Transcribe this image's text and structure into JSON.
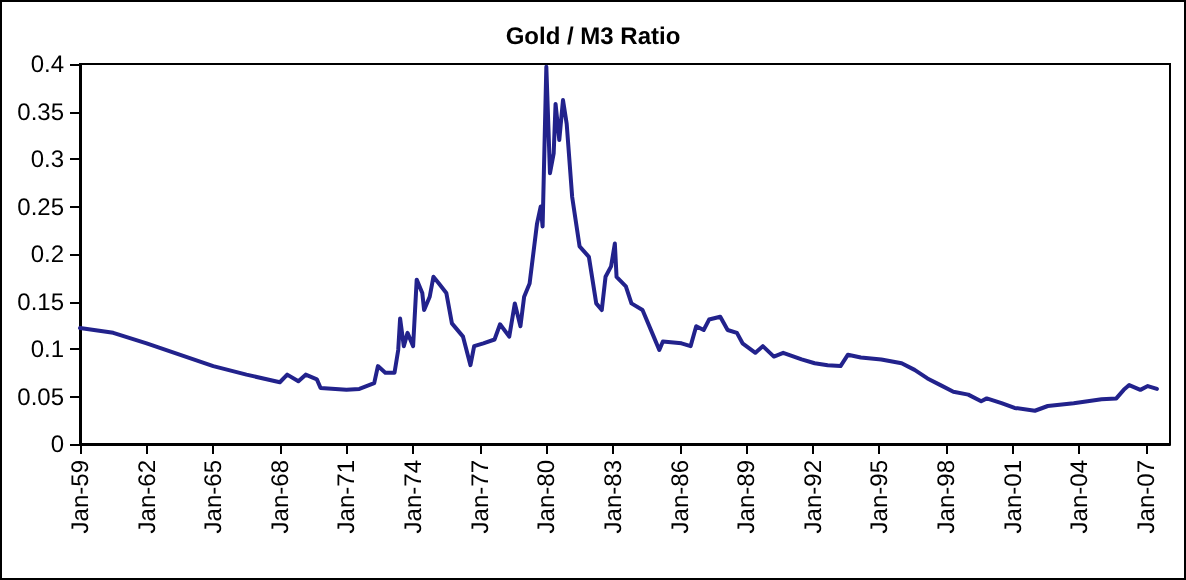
{
  "chart_data": {
    "type": "line",
    "title": "Gold / M3 Ratio",
    "x": [
      "1959-01",
      "1960-07",
      "1962-01",
      "1965-01",
      "1966-07",
      "1968-01",
      "1968-05",
      "1968-11",
      "1969-03",
      "1969-09",
      "1969-11",
      "1971-01",
      "1971-08",
      "1972-04",
      "1972-06",
      "1972-10",
      "1973-03",
      "1973-05",
      "1973-06",
      "1973-08",
      "1973-10",
      "1974-01",
      "1974-03",
      "1974-06",
      "1974-07",
      "1974-10",
      "1974-12",
      "1975-03",
      "1975-07",
      "1975-10",
      "1976-04",
      "1976-08",
      "1976-10",
      "1977-03",
      "1977-09",
      "1977-12",
      "1978-05",
      "1978-08",
      "1978-11",
      "1979-01",
      "1979-04",
      "1979-08",
      "1979-10",
      "1979-11",
      "1980-01",
      "1980-03",
      "1980-05",
      "1980-06",
      "1980-08",
      "1980-10",
      "1980-12",
      "1981-03",
      "1981-07",
      "1981-12",
      "1982-04",
      "1982-07",
      "1982-09",
      "1982-12",
      "1983-02",
      "1983-03",
      "1983-08",
      "1983-11",
      "1984-05",
      "1984-11",
      "1985-02",
      "1985-04",
      "1986-02",
      "1986-07",
      "1986-10",
      "1987-02",
      "1987-05",
      "1987-11",
      "1988-03",
      "1988-08",
      "1988-11",
      "1989-06",
      "1989-10",
      "1990-04",
      "1990-09",
      "1991-07",
      "1992-02",
      "1992-09",
      "1993-04",
      "1993-08",
      "1994-03",
      "1995-02",
      "1996-01",
      "1996-08",
      "1997-03",
      "1997-10",
      "1998-05",
      "1999-01",
      "1999-08",
      "1999-11",
      "2000-07",
      "2001-02",
      "2002-01",
      "2002-08",
      "2003-10",
      "2005-01",
      "2005-09",
      "2006-01",
      "2006-04",
      "2006-10",
      "2007-02",
      "2007-07"
    ],
    "series": [
      {
        "color": "#22228c",
        "values": [
          0.122,
          0.117,
          0.106,
          0.082,
          0.073,
          0.065,
          0.073,
          0.066,
          0.073,
          0.068,
          0.059,
          0.057,
          0.058,
          0.064,
          0.082,
          0.075,
          0.075,
          0.099,
          0.132,
          0.103,
          0.117,
          0.103,
          0.173,
          0.159,
          0.141,
          0.155,
          0.176,
          0.169,
          0.159,
          0.127,
          0.113,
          0.083,
          0.103,
          0.106,
          0.11,
          0.126,
          0.113,
          0.148,
          0.124,
          0.155,
          0.169,
          0.232,
          0.25,
          0.229,
          0.397,
          0.285,
          0.306,
          0.358,
          0.32,
          0.362,
          0.337,
          0.26,
          0.208,
          0.197,
          0.148,
          0.141,
          0.176,
          0.187,
          0.211,
          0.176,
          0.166,
          0.148,
          0.141,
          0.113,
          0.099,
          0.108,
          0.106,
          0.103,
          0.124,
          0.12,
          0.131,
          0.134,
          0.12,
          0.117,
          0.106,
          0.096,
          0.103,
          0.092,
          0.096,
          0.089,
          0.085,
          0.083,
          0.082,
          0.094,
          0.091,
          0.089,
          0.085,
          0.078,
          0.069,
          0.062,
          0.055,
          0.052,
          0.045,
          0.048,
          0.043,
          0.038,
          0.035,
          0.04,
          0.043,
          0.047,
          0.048,
          0.057,
          0.062,
          0.057,
          0.061,
          0.058
        ]
      }
    ],
    "xlim": [
      "1959-01",
      "2008-02"
    ],
    "xticks": [
      {
        "value": "1959-01",
        "label": "Jan-59"
      },
      {
        "value": "1962-01",
        "label": "Jan-62"
      },
      {
        "value": "1965-01",
        "label": "Jan-65"
      },
      {
        "value": "1968-01",
        "label": "Jan-68"
      },
      {
        "value": "1971-01",
        "label": "Jan-71"
      },
      {
        "value": "1974-01",
        "label": "Jan-74"
      },
      {
        "value": "1977-01",
        "label": "Jan-77"
      },
      {
        "value": "1980-01",
        "label": "Jan-80"
      },
      {
        "value": "1983-01",
        "label": "Jan-83"
      },
      {
        "value": "1986-01",
        "label": "Jan-86"
      },
      {
        "value": "1989-01",
        "label": "Jan-89"
      },
      {
        "value": "1992-01",
        "label": "Jan-92"
      },
      {
        "value": "1995-01",
        "label": "Jan-95"
      },
      {
        "value": "1998-01",
        "label": "Jan-98"
      },
      {
        "value": "2001-01",
        "label": "Jan-01"
      },
      {
        "value": "2004-01",
        "label": "Jan-04"
      },
      {
        "value": "2007-01",
        "label": "Jan-07"
      }
    ],
    "ylim": [
      0,
      0.4
    ],
    "yticks": [
      0,
      0.05,
      0.1,
      0.15,
      0.2,
      0.25,
      0.3,
      0.35,
      0.4
    ],
    "grid": false,
    "marker": "none",
    "line_style": "solid"
  }
}
